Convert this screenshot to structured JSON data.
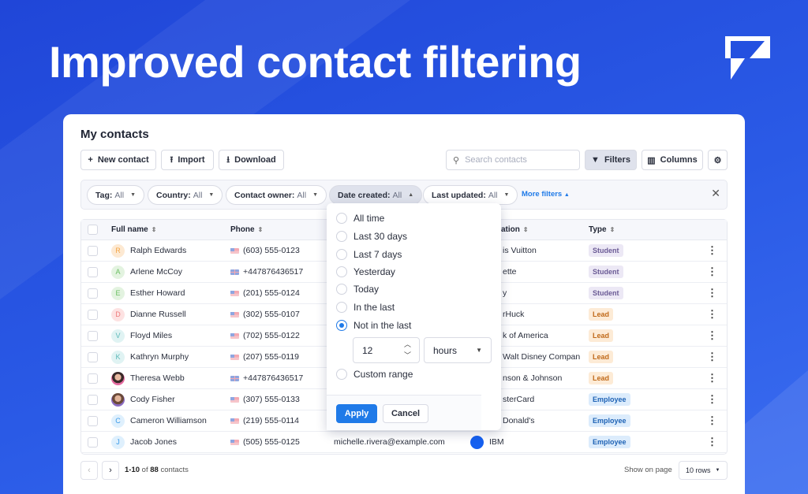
{
  "headline": "Improved contact filtering",
  "colors": {
    "background": "#2350e0",
    "accent": "#1f7ae8",
    "student_bg": "#ece8f5",
    "lead_bg": "#fdebd6",
    "employee_bg": "#dcecfc"
  },
  "page_title": "My contacts",
  "toolbar": {
    "new_contact": "New contact",
    "import": "Import",
    "download": "Download",
    "search_placeholder": "Search contacts",
    "filters": "Filters",
    "columns": "Columns"
  },
  "filters": [
    {
      "label": "Tag:",
      "value": "All"
    },
    {
      "label": "Country:",
      "value": "All"
    },
    {
      "label": "Contact owner:",
      "value": "All"
    },
    {
      "label": "Date created:",
      "value": "All"
    },
    {
      "label": "Last updated:",
      "value": "All"
    }
  ],
  "more_filters": "More filters",
  "table": {
    "headers": {
      "name": "Full name",
      "phone": "Phone",
      "organization": "ation",
      "type": "Type"
    },
    "rows": [
      {
        "initial": "R",
        "name": "Ralph Edwards",
        "flag": "us",
        "phone": "(603) 555-0123",
        "org": "is Vuitton",
        "type": "Student"
      },
      {
        "initial": "A",
        "name": "Arlene McCoy",
        "flag": "uk",
        "phone": "+447876436517",
        "org": "ette",
        "type": "Student"
      },
      {
        "initial": "E",
        "name": "Esther Howard",
        "flag": "us",
        "phone": "(201) 555-0124",
        "org": "y",
        "type": "Student"
      },
      {
        "initial": "D",
        "name": "Dianne Russell",
        "flag": "us",
        "phone": "(302) 555-0107",
        "org": "rHuck",
        "type": "Lead"
      },
      {
        "initial": "V",
        "name": "Floyd Miles",
        "flag": "us",
        "phone": "(702) 555-0122",
        "org": "k of America",
        "type": "Lead"
      },
      {
        "initial": "K",
        "name": "Kathryn Murphy",
        "flag": "us",
        "phone": "(207) 555-0119",
        "org": "Walt Disney Compan",
        "type": "Lead"
      },
      {
        "initial": "",
        "name": "Theresa Webb",
        "flag": "uk",
        "phone": "+447876436517",
        "org": "nson & Johnson",
        "type": "Lead"
      },
      {
        "initial": "",
        "name": "Cody Fisher",
        "flag": "us",
        "phone": "(307) 555-0133",
        "org": "sterCard",
        "type": "Employee"
      },
      {
        "initial": "C",
        "name": "Cameron Williamson",
        "flag": "us",
        "phone": "(219) 555-0114",
        "org": "Donald's",
        "type": "Employee"
      },
      {
        "initial": "J",
        "name": "Jacob Jones",
        "flag": "us",
        "phone": "(505) 555-0125",
        "email": "michelle.rivera@example.com",
        "org": "IBM",
        "type": "Employee"
      }
    ]
  },
  "pagination": {
    "range": "1-10",
    "of": "of",
    "total": "88",
    "unit": "contacts",
    "show_on_page": "Show on page",
    "rows_select": "10 rows"
  },
  "date_popover": {
    "options": [
      "All time",
      "Last 30 days",
      "Last 7 days",
      "Yesterday",
      "Today",
      "In the last",
      "Not in the last",
      "Custom range"
    ],
    "selected": "Not in the last",
    "amount": "12",
    "unit": "hours",
    "apply": "Apply",
    "cancel": "Cancel"
  }
}
